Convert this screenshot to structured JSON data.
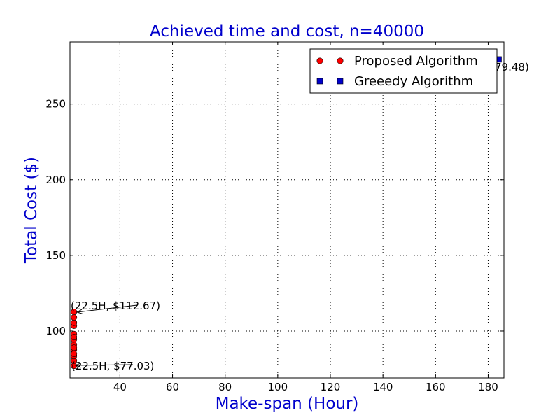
{
  "colors": {
    "title": "#0000cc",
    "axis_label": "#0000cc",
    "proposed": "#ff0000",
    "greedy": "#0000cc",
    "grid": "#000000"
  },
  "chart_data": {
    "type": "scatter",
    "title": "Achieved time and cost, n=40000",
    "xlabel": "Make-span (Hour)",
    "ylabel": "Total Cost ($)",
    "xlim": [
      21,
      186
    ],
    "ylim": [
      69,
      291
    ],
    "xticks": [
      40,
      60,
      80,
      100,
      120,
      140,
      160,
      180
    ],
    "yticks": [
      100,
      150,
      200,
      250
    ],
    "grid": true,
    "legend_position": "top-right",
    "series": [
      {
        "name": "Proposed Algorithm",
        "marker": "circle",
        "color": "#ff0000",
        "x": [
          22.5,
          22.5,
          22.5,
          22.5,
          22.5,
          22.5,
          22.5,
          22.5,
          22.5,
          22.5,
          22.5,
          22.5,
          22.5,
          22.5
        ],
        "y": [
          77.03,
          80.5,
          83.5,
          87.5,
          91,
          94.5,
          98,
          103.5,
          105.5,
          109,
          112.67,
          85,
          89,
          96
        ]
      },
      {
        "name": "Greeedy Algorithm",
        "marker": "square",
        "color": "#0000cc",
        "x": [
          184
        ],
        "y": [
          279.48
        ]
      }
    ],
    "annotations": [
      {
        "text": "(22.5H, $112.67)",
        "x": 22.5,
        "y": 112.67
      },
      {
        "text": "(22.5H, $77.03)",
        "x": 22.5,
        "y": 77.03
      },
      {
        "text": "79.48)",
        "x": 184,
        "y": 279.48
      }
    ]
  }
}
